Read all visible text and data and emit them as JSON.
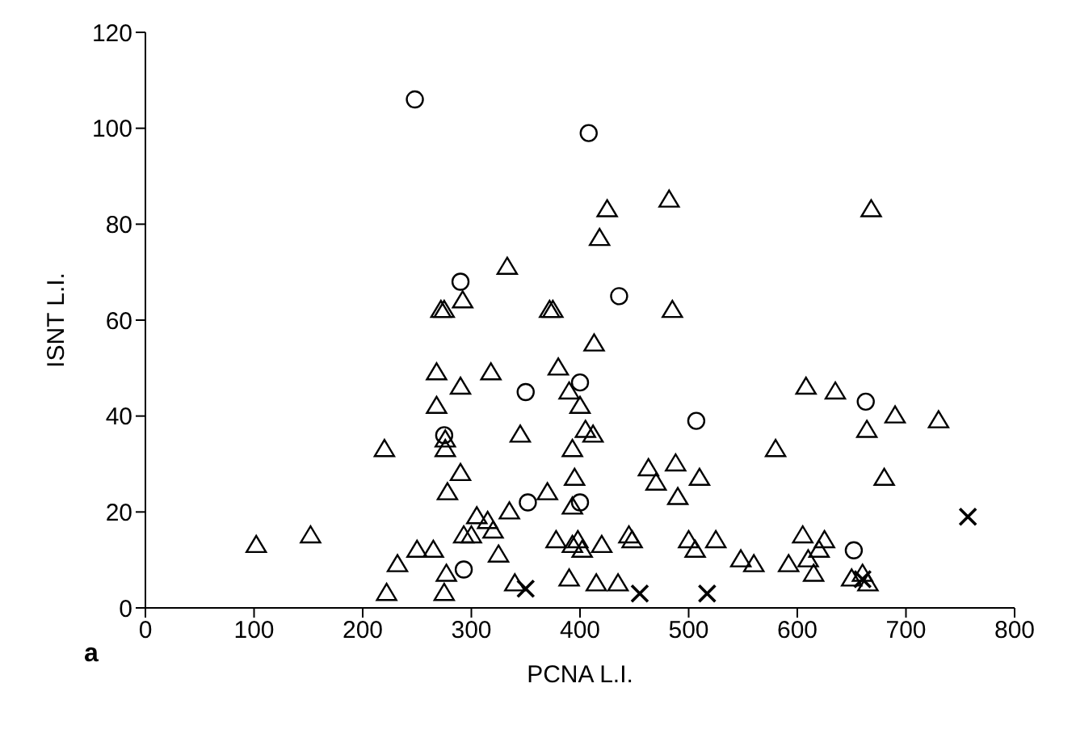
{
  "chart_data": {
    "type": "scatter",
    "xlabel": "PCNA L.I.",
    "ylabel": "ISNT L.I.",
    "annotations": [
      "a"
    ],
    "xlim": [
      0,
      800
    ],
    "xticks": [
      0,
      100,
      200,
      300,
      400,
      500,
      600,
      700,
      800
    ],
    "ylim": [
      0,
      120
    ],
    "yticks": [
      0,
      20,
      40,
      60,
      80,
      100,
      120
    ],
    "grid": false,
    "legend": false,
    "series": [
      {
        "color": "#000000",
        "marker": "triangle",
        "x": [
          102,
          152,
          220,
          222,
          232,
          250,
          265,
          268,
          268,
          272,
          275,
          276,
          276,
          278,
          277,
          275,
          290,
          290,
          292,
          293,
          300,
          305,
          315,
          318,
          320,
          325,
          333,
          335,
          340,
          345,
          370,
          372,
          375,
          378,
          380,
          390,
          390,
          393,
          393,
          393,
          395,
          398,
          400,
          402,
          405,
          412,
          413,
          415,
          418,
          420,
          425,
          435,
          445,
          448,
          463,
          470,
          482,
          485,
          488,
          490,
          500,
          506,
          510,
          525,
          548,
          560,
          580,
          592,
          605,
          608,
          610,
          615,
          625,
          620,
          635,
          650,
          660,
          665,
          664,
          668,
          680,
          690,
          730
        ],
        "values": [
          13,
          15,
          33,
          3,
          9,
          12,
          12,
          42,
          49,
          62,
          62,
          35,
          33,
          24,
          7,
          3,
          28,
          46,
          64,
          15,
          15,
          19,
          18,
          49,
          16,
          11,
          71,
          20,
          5,
          36,
          24,
          62,
          62,
          14,
          50,
          45,
          6,
          13,
          33,
          21,
          27,
          14,
          42,
          12,
          37,
          36,
          55,
          5,
          77,
          13,
          83,
          5,
          15,
          14,
          29,
          26,
          85,
          62,
          30,
          23,
          14,
          12,
          27,
          14,
          10,
          9,
          33,
          9,
          15,
          46,
          10,
          7,
          14,
          12,
          45,
          6,
          7,
          5,
          37,
          83,
          27,
          40,
          39
        ]
      },
      {
        "color": "#000000",
        "marker": "circle",
        "x": [
          248,
          408,
          290,
          436,
          400,
          350,
          507,
          663,
          275,
          352,
          400,
          293,
          652
        ],
        "values": [
          106,
          99,
          68,
          65,
          47,
          45,
          39,
          43,
          36,
          22,
          22,
          8,
          12
        ]
      },
      {
        "color": "#000000",
        "marker": "cross",
        "x": [
          350,
          455,
          517,
          757,
          660
        ],
        "values": [
          4,
          3,
          3,
          19,
          6
        ]
      }
    ]
  }
}
